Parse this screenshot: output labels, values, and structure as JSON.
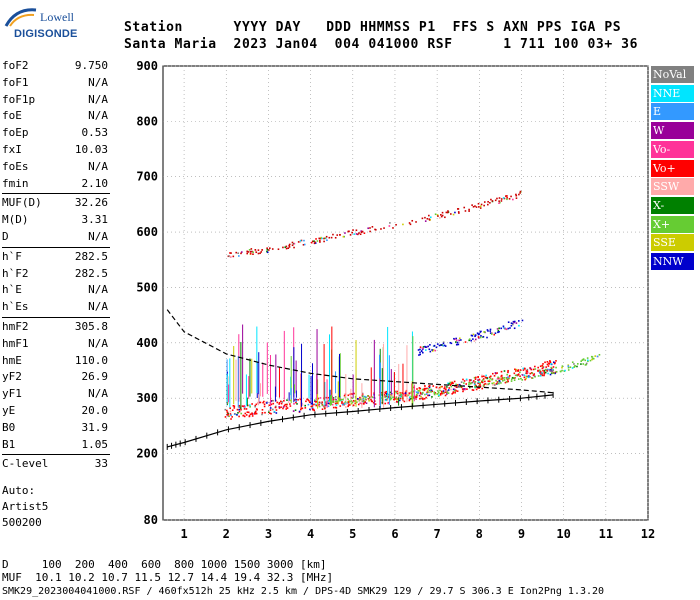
{
  "logo": {
    "brand": "Lowell",
    "product": "DIGISONDE"
  },
  "header": {
    "line1": "Station      YYYY DAY   DDD HHMMSS P1  FFS S AXN PPS IGA PS",
    "line2": "Santa Maria  2023 Jan04  004 041000 RSF      1 711 100 03+ 36"
  },
  "params": [
    {
      "label": "foF2",
      "value": "9.750"
    },
    {
      "label": "foF1",
      "value": "N/A"
    },
    {
      "label": "foF1p",
      "value": "N/A"
    },
    {
      "label": "foE",
      "value": "N/A"
    },
    {
      "label": "foEp",
      "value": "0.53"
    },
    {
      "label": "fxI",
      "value": "10.03"
    },
    {
      "label": "foEs",
      "value": "N/A"
    },
    {
      "label": "fmin",
      "value": "2.10"
    },
    {
      "label": "MUF(D)",
      "value": "32.26"
    },
    {
      "label": "M(D)",
      "value": "3.31"
    },
    {
      "label": "D",
      "value": "N/A"
    },
    {
      "label": "h`F",
      "value": "282.5"
    },
    {
      "label": "h`F2",
      "value": "282.5"
    },
    {
      "label": "h`E",
      "value": "N/A"
    },
    {
      "label": "h`Es",
      "value": "N/A"
    },
    {
      "label": "hmF2",
      "value": "305.8"
    },
    {
      "label": "hmF1",
      "value": "N/A"
    },
    {
      "label": "hmE",
      "value": "110.0"
    },
    {
      "label": "yF2",
      "value": "26.9"
    },
    {
      "label": "yF1",
      "value": "N/A"
    },
    {
      "label": "yE",
      "value": "20.0"
    },
    {
      "label": "B0",
      "value": "31.9"
    },
    {
      "label": "B1",
      "value": "1.05"
    },
    {
      "label": "C-level",
      "value": "33"
    }
  ],
  "auto": {
    "line1": "Auto:",
    "line2": "Artist5",
    "line3": "500200"
  },
  "legend": [
    {
      "label": "NoVal",
      "color": "#808080"
    },
    {
      "label": "NNE",
      "color": "#00e5ff"
    },
    {
      "label": "E",
      "color": "#3399ff"
    },
    {
      "label": "W",
      "color": "#990099"
    },
    {
      "label": "Vo-",
      "color": "#ff3399"
    },
    {
      "label": "Vo+",
      "color": "#ff0000"
    },
    {
      "label": "SSW",
      "color": "#ffaaaa"
    },
    {
      "label": "X-",
      "color": "#008000"
    },
    {
      "label": "X+",
      "color": "#66cc33"
    },
    {
      "label": "SSE",
      "color": "#cccc00"
    },
    {
      "label": "NNW",
      "color": "#0000cc"
    }
  ],
  "bottom": {
    "d_line": "D     100  200  400  600  800 1000 1500 3000 [km]",
    "muf_line": "MUF  10.1 10.2 10.7 11.5 12.7 14.4 19.4 32.3 [MHz]",
    "footer": "SMK29_2023004041000.RSF / 460fx512h 25 kHz 2.5 km / DPS-4D SMK29 129 / 29.7 S 306.3 E Ion2Png 1.3.20"
  },
  "chart_data": {
    "type": "scatter",
    "xlim": [
      0.5,
      12
    ],
    "ylim": [
      80,
      900
    ],
    "x_ticks": [
      "1",
      "2",
      "3",
      "4",
      "5",
      "6",
      "7",
      "8",
      "9",
      "10",
      "11",
      "12"
    ],
    "y_ticks": [
      "900",
      "800",
      "700",
      "600",
      "500",
      "400",
      "300",
      "200",
      "80"
    ],
    "grid": "dotted",
    "trace_ox": {
      "x": [
        2.0,
        3.0,
        4.0,
        5.0,
        6.0,
        7.0,
        8.0,
        9.0,
        9.8
      ],
      "y": [
        275,
        285,
        290,
        298,
        305,
        315,
        330,
        345,
        360
      ],
      "color": "#ff0000"
    },
    "trace_x": {
      "x": [
        4.2,
        5.0,
        6.0,
        7.0,
        8.0,
        9.0,
        10.0,
        10.8
      ],
      "y": [
        290,
        298,
        305,
        315,
        328,
        340,
        355,
        375
      ],
      "color": "#66cc33"
    },
    "trace_second_hop": {
      "x": [
        2.0,
        3.0,
        4.0,
        5.0,
        6.0,
        7.0,
        8.0,
        9.0
      ],
      "y": [
        560,
        570,
        585,
        600,
        615,
        630,
        650,
        670
      ],
      "color": "#cc0000"
    },
    "trace_multi": {
      "x": [
        6.5,
        7.0,
        7.5,
        8.0,
        8.5,
        9.0
      ],
      "y": [
        385,
        395,
        405,
        415,
        425,
        440
      ],
      "color": "#0000cc"
    },
    "profile": {
      "x": [
        0.6,
        1.0,
        2.0,
        3.0,
        4.0,
        5.0,
        6.0,
        7.0,
        8.0,
        9.0,
        9.75
      ],
      "y": [
        212,
        220,
        243,
        258,
        270,
        276,
        283,
        289,
        295,
        300,
        306
      ]
    },
    "virtual_height": {
      "x": [
        0.6,
        1.0,
        2.0,
        3.0,
        4.0,
        5.0,
        6.0,
        7.0,
        8.0,
        9.0,
        9.75
      ],
      "y": [
        460,
        420,
        380,
        360,
        345,
        335,
        330,
        325,
        320,
        315,
        310
      ]
    }
  }
}
